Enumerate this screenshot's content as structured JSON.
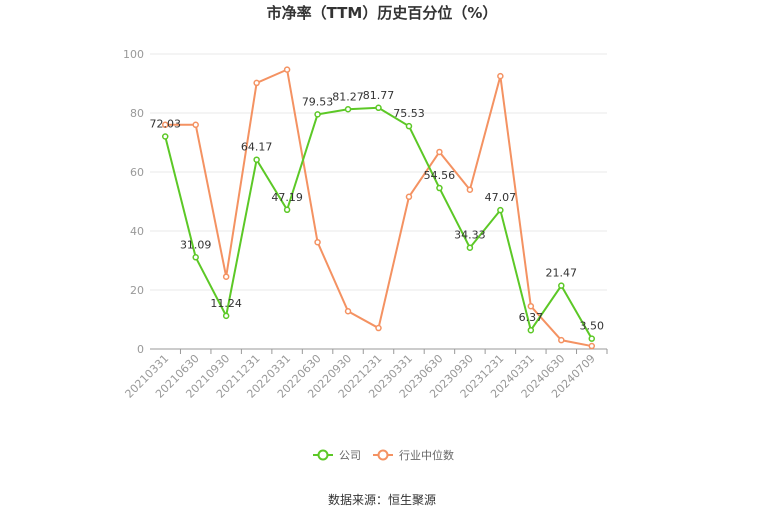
{
  "title": "市净率（TTM）历史百分位（%）",
  "source": "数据来源：恒生聚源",
  "colors": {
    "company": "#5cc826",
    "industry": "#f49262",
    "grid": "#e8e8e8",
    "axis": "#999999"
  },
  "legend": {
    "company": "公司",
    "industry": "行业中位数"
  },
  "chart_data": {
    "type": "line",
    "title": "市净率（TTM）历史百分位（%）",
    "categories": [
      "20210331",
      "20210630",
      "20210930",
      "20211231",
      "20220331",
      "20220630",
      "20220930",
      "20221231",
      "20230331",
      "20230630",
      "20230930",
      "20231231",
      "20240331",
      "20240630",
      "20240709"
    ],
    "ylim": [
      0,
      100
    ],
    "yticks": [
      0,
      20,
      40,
      60,
      80,
      100
    ],
    "grid": true,
    "legend_position": "bottom",
    "series": [
      {
        "name": "公司",
        "color": "#5cc826",
        "labels": true,
        "values": [
          72.03,
          31.09,
          11.24,
          64.17,
          47.19,
          79.53,
          81.27,
          81.77,
          75.53,
          54.56,
          34.33,
          47.07,
          6.37,
          21.47,
          3.5
        ],
        "value_labels": [
          "72.03",
          "31.09",
          "11.24",
          "64.17",
          "47.19",
          "79.53",
          "81.27",
          "81.77",
          "75.53",
          "54.56",
          "34.33",
          "47.07",
          "6.37",
          "21.47",
          "3.50"
        ]
      },
      {
        "name": "行业中位数",
        "color": "#f49262",
        "labels": false,
        "values": [
          76.0,
          76.0,
          24.5,
          90.2,
          94.7,
          36.2,
          12.8,
          7.1,
          51.6,
          66.8,
          54.0,
          92.5,
          14.5,
          3.0,
          1.0
        ]
      }
    ]
  }
}
